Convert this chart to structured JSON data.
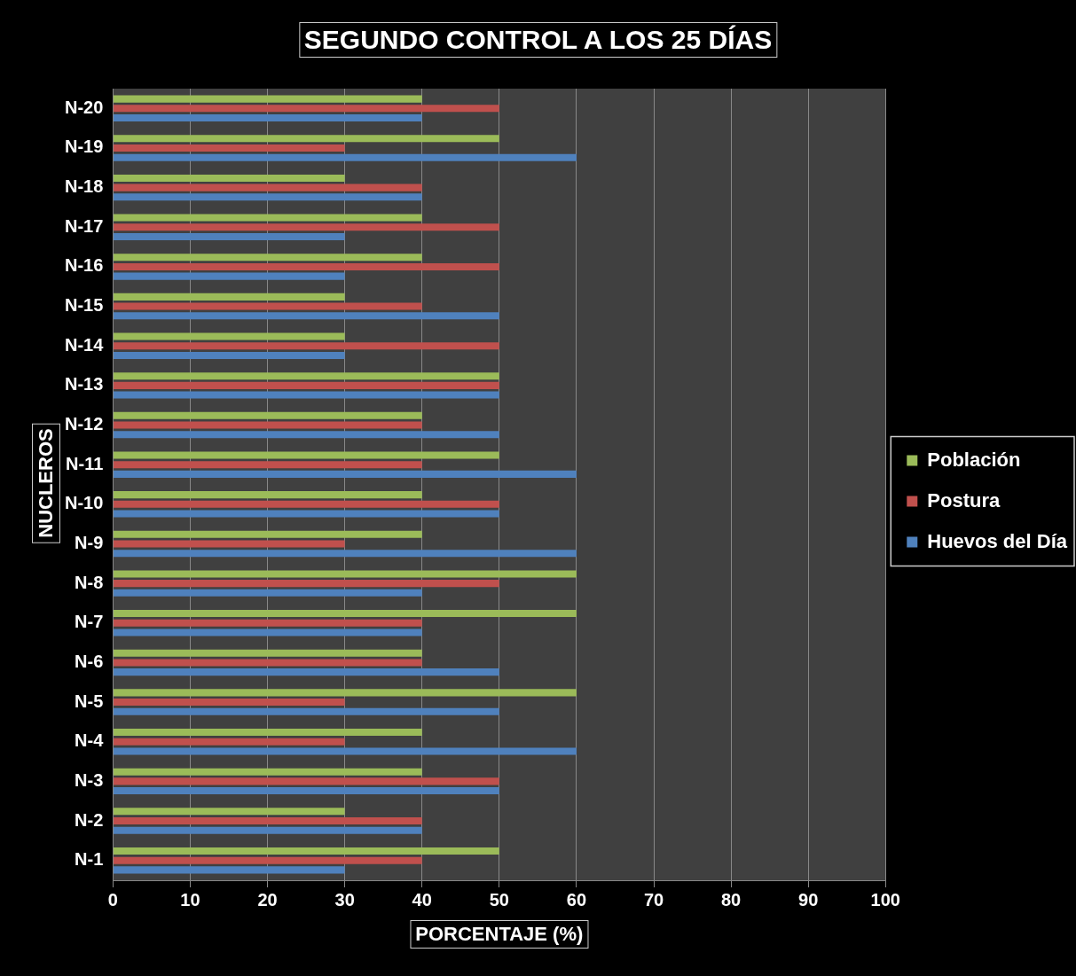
{
  "chart_data": {
    "type": "bar",
    "orientation": "horizontal",
    "title": "SEGUNDO CONTROL A LOS 25 DÍAS",
    "xlabel": "PORCENTAJE (%)",
    "ylabel": "NUCLEROS",
    "categories": [
      "N-20",
      "N-19",
      "N-18",
      "N-17",
      "N-16",
      "N-15",
      "N-14",
      "N-13",
      "N-12",
      "N-11",
      "N-10",
      "N-9",
      "N-8",
      "N-7",
      "N-6",
      "N-5",
      "N-4",
      "N-3",
      "N-2",
      "N-1"
    ],
    "series": [
      {
        "name": "Población",
        "color": "#9bbb59",
        "values": [
          40,
          50,
          30,
          40,
          40,
          30,
          30,
          50,
          40,
          50,
          40,
          40,
          60,
          60,
          40,
          60,
          40,
          40,
          30,
          50
        ]
      },
      {
        "name": "Postura",
        "color": "#c0504d",
        "values": [
          50,
          30,
          40,
          50,
          50,
          40,
          50,
          50,
          40,
          40,
          50,
          30,
          50,
          40,
          40,
          30,
          30,
          50,
          40,
          40
        ]
      },
      {
        "name": "Huevos del Día",
        "color": "#4f81bd",
        "values": [
          40,
          60,
          40,
          30,
          30,
          50,
          30,
          50,
          50,
          60,
          50,
          60,
          40,
          40,
          50,
          50,
          60,
          50,
          40,
          30
        ]
      }
    ],
    "xlim": [
      0,
      100
    ],
    "xticks": [
      0,
      10,
      20,
      30,
      40,
      50,
      60,
      70,
      80,
      90,
      100
    ],
    "grid": "x",
    "legend": "right"
  }
}
